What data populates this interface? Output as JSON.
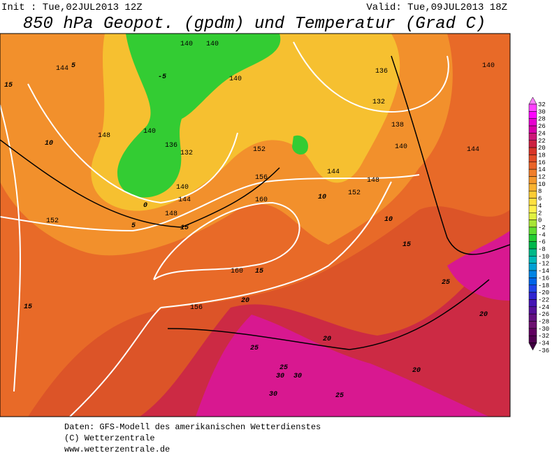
{
  "header": {
    "init": "Init : Tue,02JUL2013 12Z",
    "valid": "Valid: Tue,09JUL2013 18Z",
    "title": "850 hPa Geopot. (gpdm) und Temperatur (Grad C)"
  },
  "legend": {
    "labels": [
      32,
      30,
      28,
      26,
      24,
      22,
      20,
      18,
      16,
      14,
      12,
      10,
      8,
      6,
      4,
      2,
      0,
      -2,
      -4,
      -6,
      -8,
      -10,
      -12,
      -14,
      -16,
      -18,
      -20,
      -22,
      -24,
      -26,
      -28,
      -30,
      -32,
      -34,
      -36
    ],
    "colors": [
      "#ff80ff",
      "#ff40ff",
      "#ff00ff",
      "#e600d0",
      "#d800a8",
      "#cc1878",
      "#cc2040",
      "#d83428",
      "#e24c26",
      "#ea6428",
      "#f07e2a",
      "#f4982c",
      "#f8b230",
      "#fccc34",
      "#ffe040",
      "#fff04c",
      "#e0f040",
      "#a8e436",
      "#60dc30",
      "#22cc33",
      "#00b84c",
      "#00b888",
      "#00b8b8",
      "#00a0d4",
      "#0084e4",
      "#0064e8",
      "#2044e8",
      "#3024d0",
      "#4414b4",
      "#541098",
      "#621080",
      "#6c1070",
      "#600060",
      "#500050",
      "#400040"
    ]
  },
  "map": {
    "labels": [
      "140",
      "140",
      "140",
      "140",
      "144",
      "136",
      "132",
      "140",
      "144",
      "148",
      "152",
      "156",
      "160",
      "160",
      "156",
      "148",
      "152",
      "144",
      "136",
      "132",
      "138",
      "140",
      "144",
      "152",
      "148",
      "140",
      "5",
      "10",
      "15",
      "15",
      "10",
      "5",
      "0",
      "-5",
      "15",
      "20",
      "25",
      "20",
      "25",
      "30",
      "30",
      "30",
      "25",
      "20",
      "25",
      "20",
      "15",
      "10",
      "15"
    ]
  },
  "footer": {
    "lines": [
      "Daten: GFS-Modell des amerikanischen Wetterdienstes",
      "(C) Wetterzentrale",
      "www.wetterzentrale.de"
    ]
  }
}
